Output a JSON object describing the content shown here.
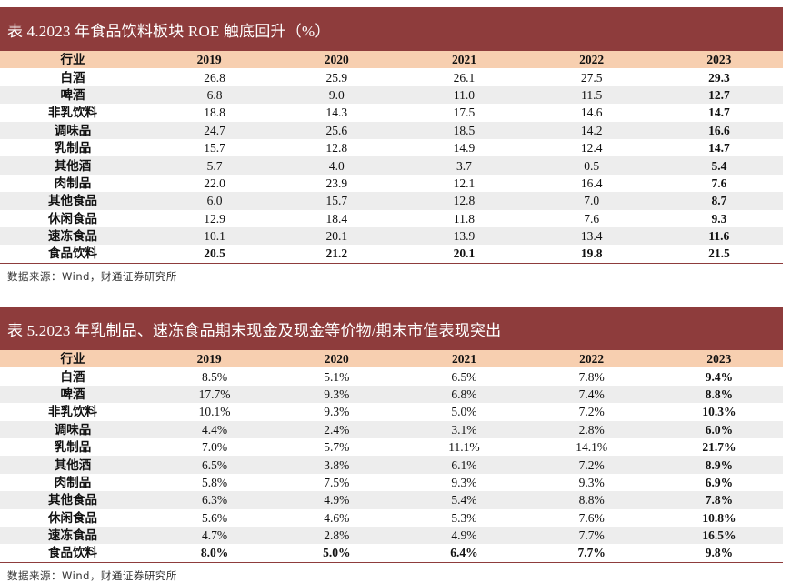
{
  "tables": [
    {
      "title": "表 4.2023 年食品饮料板块 ROE 触底回升（%）",
      "headers": [
        "行业",
        "2019",
        "2020",
        "2021",
        "2022",
        "2023"
      ],
      "rows": [
        {
          "industry": "白酒",
          "values": [
            "26.8",
            "25.9",
            "26.1",
            "27.5",
            "29.3"
          ]
        },
        {
          "industry": "啤酒",
          "values": [
            "6.8",
            "9.0",
            "11.0",
            "11.5",
            "12.7"
          ]
        },
        {
          "industry": "非乳饮料",
          "values": [
            "18.8",
            "14.3",
            "17.5",
            "14.6",
            "14.7"
          ]
        },
        {
          "industry": "调味品",
          "values": [
            "24.7",
            "25.6",
            "18.5",
            "14.2",
            "16.6"
          ]
        },
        {
          "industry": "乳制品",
          "values": [
            "15.7",
            "12.8",
            "14.9",
            "12.4",
            "14.7"
          ]
        },
        {
          "industry": "其他酒",
          "values": [
            "5.7",
            "4.0",
            "3.7",
            "0.5",
            "5.4"
          ]
        },
        {
          "industry": "肉制品",
          "values": [
            "22.0",
            "23.9",
            "12.1",
            "16.4",
            "7.6"
          ]
        },
        {
          "industry": "其他食品",
          "values": [
            "6.0",
            "15.7",
            "12.8",
            "7.0",
            "8.7"
          ]
        },
        {
          "industry": "休闲食品",
          "values": [
            "12.9",
            "18.4",
            "11.8",
            "7.6",
            "9.3"
          ]
        },
        {
          "industry": "速冻食品",
          "values": [
            "10.1",
            "20.1",
            "13.9",
            "13.4",
            "11.6"
          ]
        },
        {
          "industry": "食品饮料",
          "values": [
            "20.5",
            "21.2",
            "20.1",
            "19.8",
            "21.5"
          ]
        }
      ],
      "source": "数据来源：Wind，财通证券研究所"
    },
    {
      "title": "表 5.2023 年乳制品、速冻食品期末现金及现金等价物/期末市值表现突出",
      "headers": [
        "行业",
        "2019",
        "2020",
        "2021",
        "2022",
        "2023"
      ],
      "rows": [
        {
          "industry": "白酒",
          "values": [
            "8.5%",
            "5.1%",
            "6.5%",
            "7.8%",
            "9.4%"
          ]
        },
        {
          "industry": "啤酒",
          "values": [
            "17.7%",
            "9.3%",
            "6.8%",
            "7.4%",
            "8.8%"
          ]
        },
        {
          "industry": "非乳饮料",
          "values": [
            "10.1%",
            "9.3%",
            "5.0%",
            "7.2%",
            "10.3%"
          ]
        },
        {
          "industry": "调味品",
          "values": [
            "4.4%",
            "2.4%",
            "3.1%",
            "2.8%",
            "6.0%"
          ]
        },
        {
          "industry": "乳制品",
          "values": [
            "7.0%",
            "5.7%",
            "11.1%",
            "14.1%",
            "21.7%"
          ]
        },
        {
          "industry": "其他酒",
          "values": [
            "6.5%",
            "3.8%",
            "6.1%",
            "7.2%",
            "8.9%"
          ]
        },
        {
          "industry": "肉制品",
          "values": [
            "5.8%",
            "7.5%",
            "9.3%",
            "9.3%",
            "6.9%"
          ]
        },
        {
          "industry": "其他食品",
          "values": [
            "6.3%",
            "4.9%",
            "5.4%",
            "8.8%",
            "7.8%"
          ]
        },
        {
          "industry": "休闲食品",
          "values": [
            "5.6%",
            "4.6%",
            "5.3%",
            "7.6%",
            "10.8%"
          ]
        },
        {
          "industry": "速冻食品",
          "values": [
            "4.7%",
            "2.8%",
            "4.9%",
            "7.7%",
            "16.5%"
          ]
        },
        {
          "industry": "食品饮料",
          "values": [
            "8.0%",
            "5.0%",
            "6.4%",
            "7.7%",
            "9.8%"
          ]
        }
      ],
      "source": "数据来源：Wind，财通证券研究所"
    }
  ]
}
